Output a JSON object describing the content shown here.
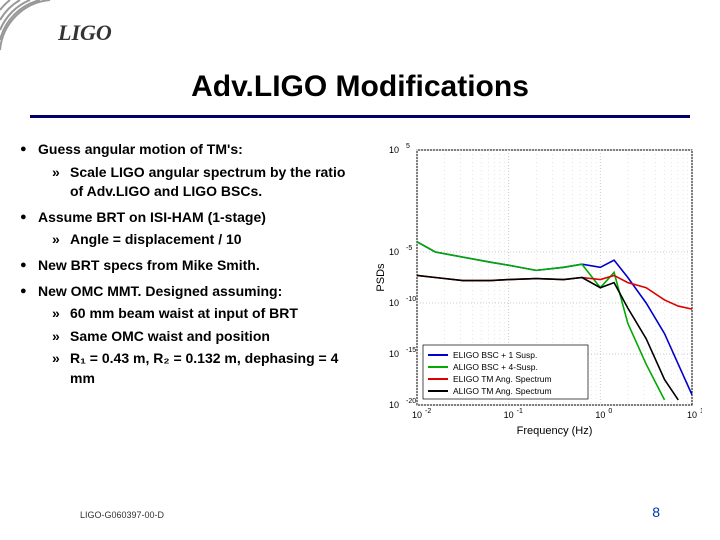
{
  "logo": {
    "text": "LIGO",
    "arc_color": "#999999"
  },
  "title": "Adv.LIGO Modifications",
  "underline_color": "#000066",
  "bullets": [
    {
      "text": "Guess angular motion of TM's:",
      "sub": [
        "Scale LIGO angular spectrum by the ratio of Adv.LIGO and LIGO BSCs."
      ]
    },
    {
      "text": "Assume BRT on ISI-HAM (1-stage)",
      "sub": [
        "Angle = displacement / 10"
      ]
    },
    {
      "text": "New BRT specs from Mike Smith.",
      "sub": []
    },
    {
      "text": "New OMC MMT. Designed assuming:",
      "sub": [
        "60 mm beam waist at input of BRT",
        "Same OMC waist and position",
        "R₁ = 0.43 m, R₂ = 0.132 m, dephasing = 4 mm"
      ]
    }
  ],
  "chart": {
    "type": "log-log-line",
    "xlabel": "Frequency (Hz)",
    "ylabel": "PSDs",
    "x_ticks_exp": [
      -2,
      -1,
      0,
      1
    ],
    "y_ticks_exp": [
      -20,
      -15,
      -10,
      -5,
      5
    ],
    "background_color": "#ffffff",
    "grid_color": "#cccccc",
    "series": [
      {
        "name": "ELIGO BSC + 1 Susp.",
        "color": "#0000cc",
        "points": [
          [
            -2,
            -4
          ],
          [
            -1.8,
            -5
          ],
          [
            -1.5,
            -5.5
          ],
          [
            -1.2,
            -6
          ],
          [
            -1.0,
            -6.3
          ],
          [
            -0.7,
            -6.8
          ],
          [
            -0.4,
            -6.5
          ],
          [
            -0.2,
            -6.2
          ],
          [
            0,
            -6.5
          ],
          [
            0.15,
            -5.8
          ],
          [
            0.3,
            -7.5
          ],
          [
            0.5,
            -10
          ],
          [
            0.7,
            -13
          ],
          [
            0.85,
            -16
          ],
          [
            1.0,
            -19
          ]
        ]
      },
      {
        "name": "ALIGO BSC + 4-Susp.",
        "color": "#00aa00",
        "points": [
          [
            -2,
            -4
          ],
          [
            -1.8,
            -5
          ],
          [
            -1.5,
            -5.5
          ],
          [
            -1.2,
            -6
          ],
          [
            -1.0,
            -6.3
          ],
          [
            -0.7,
            -6.8
          ],
          [
            -0.4,
            -6.5
          ],
          [
            -0.2,
            -6.2
          ],
          [
            0,
            -8.5
          ],
          [
            0.15,
            -7.0
          ],
          [
            0.3,
            -12
          ],
          [
            0.5,
            -16
          ],
          [
            0.7,
            -19.5
          ]
        ]
      },
      {
        "name": "ELIGO TM Ang. Spectrum",
        "color": "#dd0000",
        "points": [
          [
            -2,
            -7.3
          ],
          [
            -1.8,
            -7.5
          ],
          [
            -1.5,
            -7.8
          ],
          [
            -1.2,
            -7.8
          ],
          [
            -1.0,
            -7.7
          ],
          [
            -0.7,
            -7.6
          ],
          [
            -0.4,
            -7.7
          ],
          [
            -0.2,
            -7.5
          ],
          [
            0,
            -7.7
          ],
          [
            0.15,
            -7.3
          ],
          [
            0.3,
            -8.0
          ],
          [
            0.5,
            -8.5
          ],
          [
            0.7,
            -9.7
          ],
          [
            0.85,
            -10.3
          ],
          [
            1.0,
            -10.6
          ]
        ]
      },
      {
        "name": "ALIGO TM Ang. Spectrum",
        "color": "#000000",
        "points": [
          [
            -2,
            -7.3
          ],
          [
            -1.8,
            -7.5
          ],
          [
            -1.5,
            -7.8
          ],
          [
            -1.2,
            -7.8
          ],
          [
            -1.0,
            -7.7
          ],
          [
            -0.7,
            -7.6
          ],
          [
            -0.4,
            -7.7
          ],
          [
            -0.2,
            -7.5
          ],
          [
            0,
            -8.5
          ],
          [
            0.15,
            -8.0
          ],
          [
            0.3,
            -10.5
          ],
          [
            0.5,
            -13.5
          ],
          [
            0.7,
            -17.5
          ],
          [
            0.85,
            -19.5
          ]
        ]
      }
    ],
    "legend_pos": "bottom-left"
  },
  "footer": {
    "code": "LIGO-G060397-00-D",
    "page": "8",
    "page_color": "#0033aa"
  }
}
